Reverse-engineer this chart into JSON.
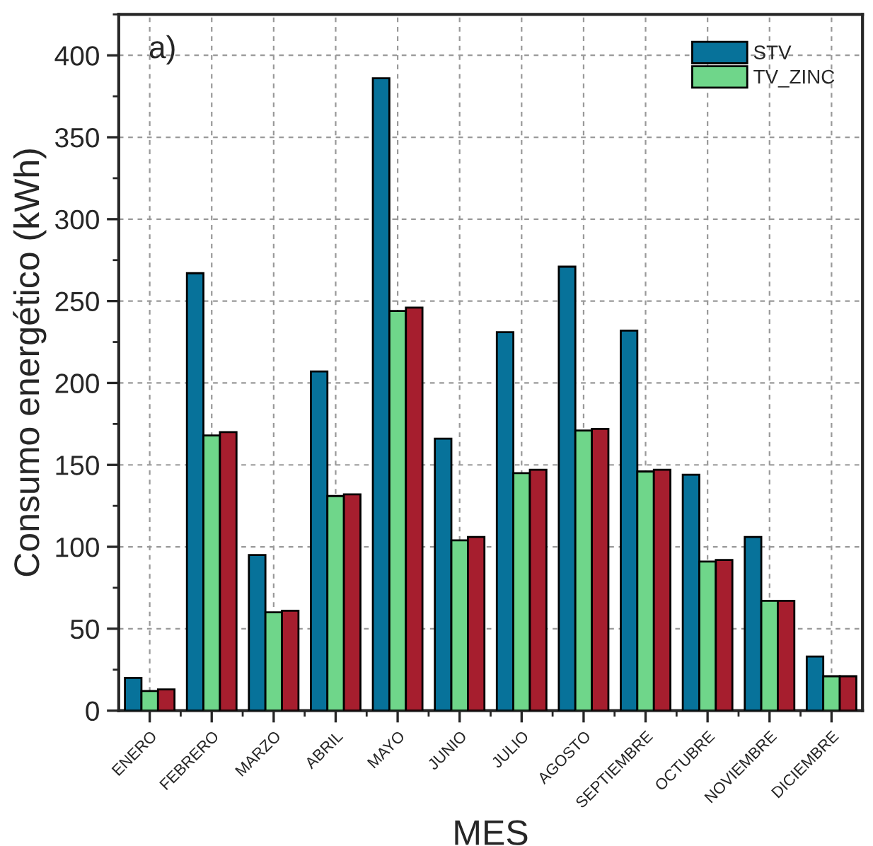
{
  "chart_data": {
    "type": "bar",
    "annotations": [
      "a)"
    ],
    "xlabel": "MES",
    "ylabel": "Consumo energético (kWh)",
    "categories": [
      "ENERO",
      "FEBRERO",
      "MARZO",
      "ABRIL",
      "MAYO",
      "JUNIO",
      "JULIO",
      "AGOSTO",
      "SEPTIEMBRE",
      "OCTUBRE",
      "NOVIEMBRE",
      "DICIEMBRE"
    ],
    "series": [
      {
        "name": "STV",
        "color": "#07729a",
        "values": [
          20,
          267,
          95,
          207,
          386,
          166,
          231,
          271,
          232,
          144,
          106,
          33
        ]
      },
      {
        "name": "TV_ZINC",
        "color": "#6fd68a",
        "values": [
          12,
          168,
          60,
          131,
          244,
          104,
          145,
          171,
          146,
          91,
          67,
          21
        ]
      },
      {
        "color": "#a61e2e",
        "values": [
          13,
          170,
          61,
          132,
          246,
          106,
          147,
          172,
          147,
          92,
          67,
          21
        ]
      }
    ],
    "ylim": [
      0,
      425
    ],
    "yticks": [
      0,
      50,
      100,
      150,
      200,
      250,
      300,
      350,
      400
    ],
    "grid": true,
    "legend": "top right"
  }
}
